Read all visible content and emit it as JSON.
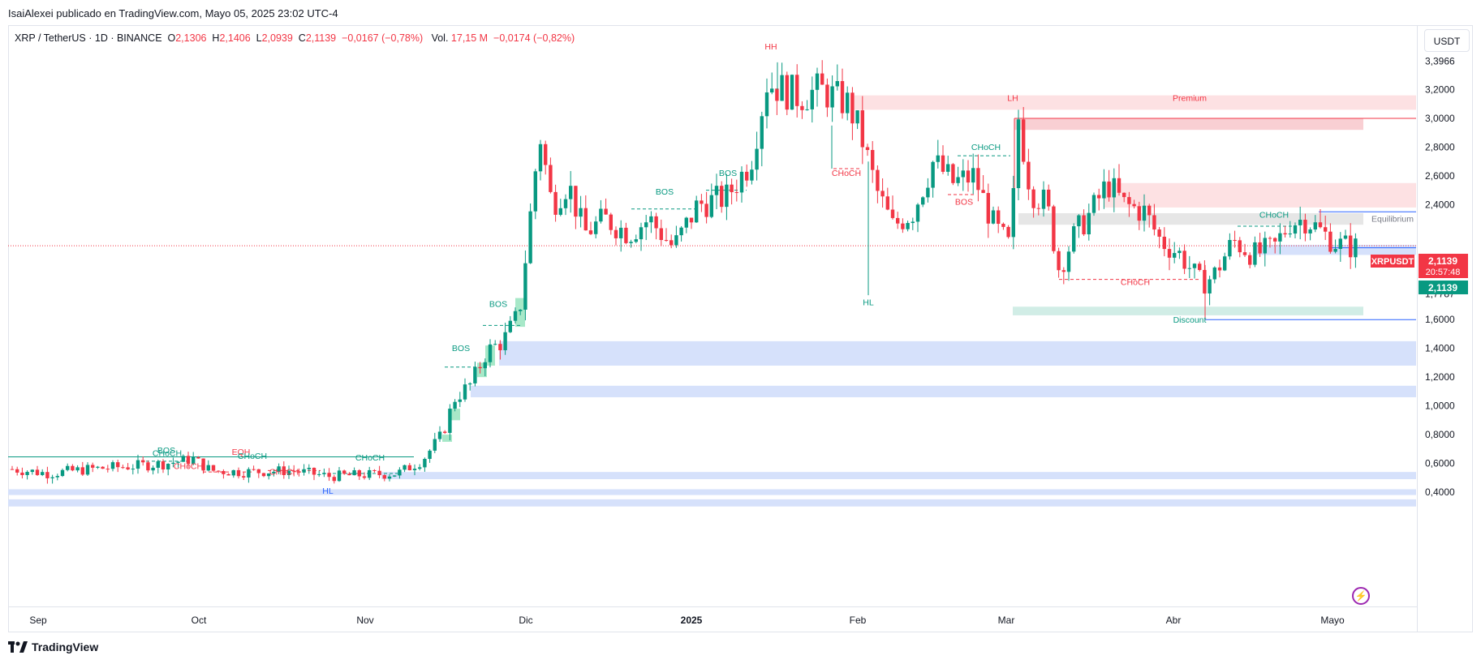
{
  "publisher": "IsaiAlexei publicado en TradingView.com, Mayo 05, 2025 23:02 UTC-4",
  "legend": {
    "symbol": "XRP / TetherUS · 1D · BINANCE",
    "o_label": "O",
    "o": "2,1306",
    "h_label": "H",
    "h": "2,1406",
    "l_label": "L",
    "l": "2,0939",
    "c_label": "C",
    "c": "2,1139",
    "change": "−0,0167 (−0,78%)",
    "vol_label": "Vol.",
    "vol": "17,15 M",
    "vol_change": "−0,0174 (−0,82%)"
  },
  "currency_button": "USDT",
  "price_axis": {
    "ticks": [
      "3,3966",
      "3,2000",
      "3,0000",
      "2,8000",
      "2,6000",
      "2,4000",
      "2,0000",
      "1,7787",
      "1,6000",
      "1,4000",
      "1,2000",
      "1,0000",
      "0,8000",
      "0,6000",
      "0,4000"
    ],
    "ticker_badge": "XRPUSDT",
    "price_badge": "2,1139",
    "countdown": "20:57:48",
    "price_badge_2": "2,1139"
  },
  "time_axis": [
    "Sep",
    "Oct",
    "Nov",
    "Dic",
    "2025",
    "Feb",
    "Mar",
    "Abr",
    "Mayo"
  ],
  "annotations": {
    "hh": "HH",
    "lh": "LH",
    "hl": "HL",
    "hl2": "HL",
    "premium": "Premium",
    "discount": "Discount",
    "equilibrium": "Equilibrium",
    "bos": "BOS",
    "choch": "CHoCH",
    "eqh": "EQH"
  },
  "brand": "TradingView",
  "colors": {
    "bull": "#089981",
    "bear": "#f23645",
    "premium_zone": "#fde1e3",
    "discount_zone": "#d1ede6",
    "blue_zone": "#d6e1fb",
    "eq_zone": "#e6e6e6",
    "accent_blue": "#2962ff"
  },
  "chart_data": {
    "type": "candlestick",
    "title": "XRP / TetherUS · 1D · BINANCE",
    "ylim": [
      0.3,
      3.5
    ],
    "y_ticks": [
      0.4,
      0.6,
      0.8,
      1.0,
      1.2,
      1.4,
      1.6,
      1.7787,
      2.0,
      2.4,
      2.6,
      2.8,
      3.0,
      3.2,
      3.3966
    ],
    "x_ticks": [
      "Sep",
      "Oct",
      "Nov",
      "Dic",
      "2025",
      "Feb",
      "Mar",
      "Abr",
      "Mayo"
    ],
    "last_price": 2.1139,
    "anchors": [
      {
        "date": "Sep",
        "close": 0.56
      },
      {
        "date": "Oct",
        "close": 0.62
      },
      {
        "date": "Nov",
        "close": 0.52
      },
      {
        "date": "Dic",
        "close": 2.3
      },
      {
        "date": "2025",
        "close": 2.1
      },
      {
        "date": "Feb",
        "close": 2.9
      },
      {
        "date": "Mar",
        "close": 2.2
      },
      {
        "date": "Abr",
        "close": 2.0
      },
      {
        "date": "Mayo",
        "close": 2.2
      }
    ],
    "levels": {
      "hh": 3.3966,
      "lh": 3.0,
      "hl": 1.7787,
      "low": 1.6
    }
  }
}
